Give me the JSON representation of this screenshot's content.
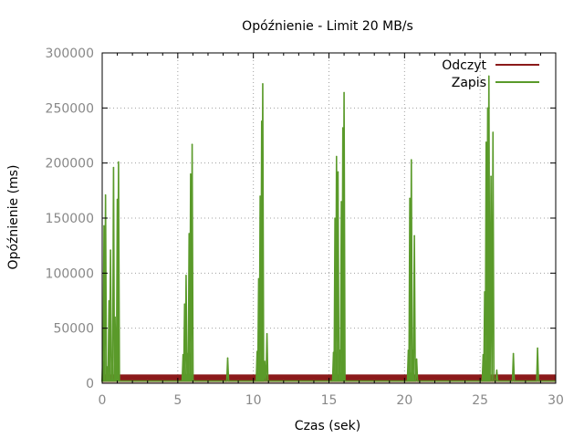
{
  "chart_data": {
    "type": "line",
    "title": "Opóźnienie - Limit 20 MB/s",
    "xlabel": "Czas (sek)",
    "ylabel": "Opóźnienie (ms)",
    "xlim": [
      0,
      30
    ],
    "ylim": [
      0,
      300000
    ],
    "xticks": [
      0,
      5,
      10,
      15,
      20,
      25,
      30
    ],
    "xtick_labels": [
      "0",
      "5",
      "10",
      "15",
      "20",
      "25",
      "30"
    ],
    "yticks": [
      0,
      50000,
      100000,
      150000,
      200000,
      250000,
      300000
    ],
    "ytick_labels": [
      "0",
      "50000",
      "100000",
      "150000",
      "200000",
      "250000",
      "300000"
    ],
    "grid": true,
    "legend_position": "top-right",
    "series": [
      {
        "name": "Odczyt",
        "color": "#8b1a1a",
        "style": "dense-band",
        "x_range": [
          0,
          30
        ],
        "band": [
          2000,
          8000
        ]
      },
      {
        "name": "Zapis",
        "color": "#5a9a2a",
        "style": "spikes",
        "baseline": 2000,
        "points": [
          [
            0.05,
            28000
          ],
          [
            0.12,
            143000
          ],
          [
            0.22,
            171000
          ],
          [
            0.35,
            15000
          ],
          [
            0.45,
            75000
          ],
          [
            0.55,
            121000
          ],
          [
            0.65,
            8000
          ],
          [
            0.75,
            196000
          ],
          [
            0.85,
            60000
          ],
          [
            0.92,
            34000
          ],
          [
            1.0,
            167000
          ],
          [
            1.08,
            201000
          ],
          [
            5.35,
            26000
          ],
          [
            5.45,
            72000
          ],
          [
            5.55,
            98000
          ],
          [
            5.65,
            27000
          ],
          [
            5.75,
            136000
          ],
          [
            5.85,
            190000
          ],
          [
            5.95,
            217000
          ],
          [
            8.3,
            23000
          ],
          [
            10.25,
            29000
          ],
          [
            10.35,
            95000
          ],
          [
            10.45,
            170000
          ],
          [
            10.55,
            238000
          ],
          [
            10.62,
            272000
          ],
          [
            10.75,
            20000
          ],
          [
            10.9,
            45000
          ],
          [
            15.3,
            28000
          ],
          [
            15.4,
            150000
          ],
          [
            15.5,
            206000
          ],
          [
            15.6,
            192000
          ],
          [
            15.72,
            30000
          ],
          [
            15.82,
            165000
          ],
          [
            15.92,
            232000
          ],
          [
            16.0,
            264000
          ],
          [
            20.25,
            30000
          ],
          [
            20.35,
            168000
          ],
          [
            20.45,
            203000
          ],
          [
            20.55,
            30000
          ],
          [
            20.65,
            134000
          ],
          [
            20.8,
            22000
          ],
          [
            25.2,
            26000
          ],
          [
            25.3,
            83000
          ],
          [
            25.4,
            219000
          ],
          [
            25.5,
            250000
          ],
          [
            25.58,
            279000
          ],
          [
            25.72,
            188000
          ],
          [
            25.85,
            228000
          ],
          [
            26.1,
            12000
          ],
          [
            27.2,
            27000
          ],
          [
            28.8,
            32000
          ]
        ]
      }
    ]
  }
}
